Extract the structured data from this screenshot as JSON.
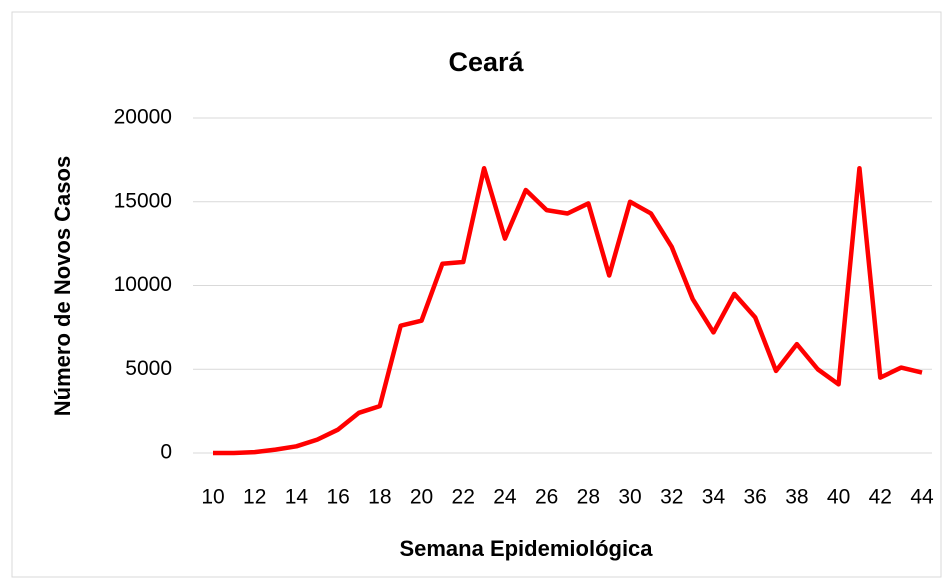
{
  "chart_data": {
    "type": "line",
    "title": "Ceará",
    "x_label": "Semana Epidemiológica",
    "y_label": "Número de Novos Casos",
    "x": [
      10,
      11,
      12,
      13,
      14,
      15,
      16,
      17,
      18,
      19,
      20,
      21,
      22,
      23,
      24,
      25,
      26,
      27,
      28,
      29,
      30,
      31,
      32,
      33,
      34,
      35,
      36,
      37,
      38,
      39,
      40,
      41,
      42,
      43,
      44
    ],
    "series": [
      {
        "name": "Ceará",
        "color": "#ff0000",
        "values": [
          0,
          0,
          50,
          200,
          400,
          800,
          1400,
          2400,
          2800,
          7600,
          7900,
          11300,
          11400,
          17000,
          12800,
          15700,
          14500,
          14300,
          14900,
          10600,
          15000,
          14300,
          12300,
          9200,
          7200,
          9500,
          8100,
          4900,
          6500,
          5000,
          4100,
          17000,
          4500,
          5100,
          4800
        ]
      }
    ],
    "xlim": [
      10,
      44
    ],
    "xticks": [
      10,
      12,
      14,
      16,
      18,
      20,
      22,
      24,
      26,
      28,
      30,
      32,
      34,
      36,
      38,
      40,
      42,
      44
    ],
    "ylim": [
      0,
      20000
    ],
    "yticks": [
      0,
      5000,
      10000,
      15000,
      20000
    ],
    "grid": true
  }
}
